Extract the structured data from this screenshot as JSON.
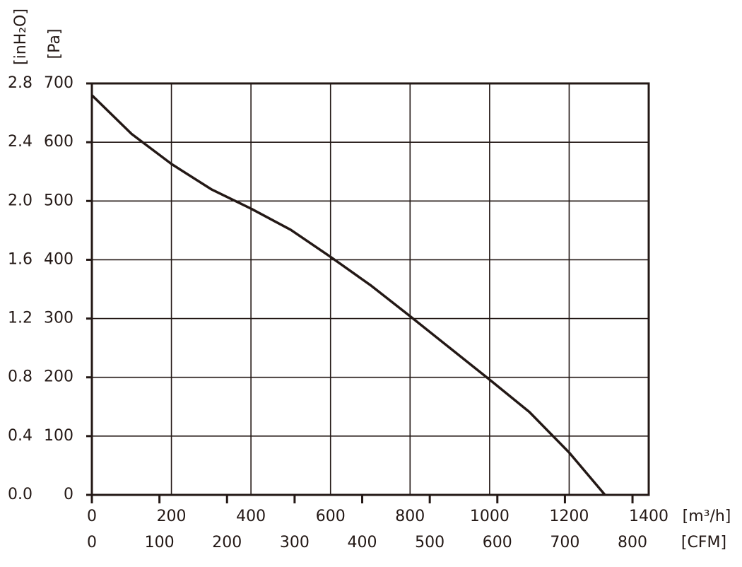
{
  "chart_data": {
    "type": "line",
    "x_label": "[m³/h]",
    "x2_label": "[CFM]",
    "y_label": "[Pa]",
    "y2_label": "[inH₂O]",
    "x": [
      0,
      100,
      200,
      300,
      400,
      500,
      600,
      700,
      800,
      900,
      1000,
      1100,
      1200,
      1290
    ],
    "values": [
      680,
      614,
      563,
      520,
      487,
      451,
      405,
      357,
      304,
      250,
      196,
      141,
      72,
      0
    ],
    "color": "#231815",
    "xlim": [
      0,
      1400
    ],
    "xticks": [
      0,
      200,
      400,
      600,
      800,
      1000,
      1200,
      1400
    ],
    "x2lim": [
      0,
      824
    ],
    "x2ticks": [
      0,
      100,
      200,
      300,
      400,
      500,
      600,
      700,
      800
    ],
    "ylim": [
      0,
      700
    ],
    "yticks": [
      0,
      100,
      200,
      300,
      400,
      500,
      600,
      700
    ],
    "y2lim": [
      0,
      2.8
    ],
    "y2ticks": [
      {
        "value": 0,
        "label": "0.0"
      },
      0.4,
      0.8,
      1.2,
      1.6,
      {
        "value": 2,
        "label": "2.0"
      },
      2.4,
      2.8
    ],
    "grid": true
  }
}
